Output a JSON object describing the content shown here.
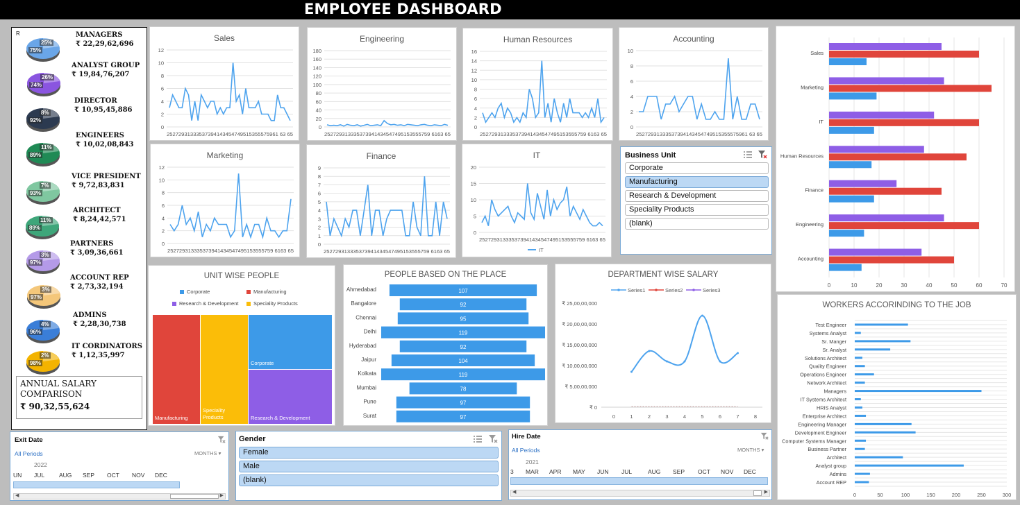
{
  "title": "EMPLOYEE DASHBOARD",
  "colors": {
    "blue": "#3d9ae8",
    "red": "#e0453b",
    "purple": "#8e5ee6",
    "yellow": "#fbbd08",
    "line": "#4da3ee"
  },
  "left_panel": {
    "marker": "R",
    "roles": [
      {
        "name": "MANAGERS",
        "value": "₹ 22,29,62,696",
        "pct_a": "25%",
        "pct_b": "75%",
        "color": "#6aa6e8"
      },
      {
        "name": "ANALYST GROUP",
        "value": "₹ 19,84,76,207",
        "pct_a": "26%",
        "pct_b": "74%",
        "color": "#8a55e0"
      },
      {
        "name": "DIRECTOR",
        "value": "₹ 10,95,45,886",
        "pct_a": "8%",
        "pct_b": "92%",
        "color": "#2c3a50"
      },
      {
        "name": "ENGINEERS",
        "value": "₹ 10,02,08,843",
        "pct_a": "11%",
        "pct_b": "89%",
        "color": "#1f8a55"
      },
      {
        "name": "VICE PRESIDENT",
        "value": "₹ 9,72,83,831",
        "pct_a": "7%",
        "pct_b": "93%",
        "color": "#7fc7a0"
      },
      {
        "name": "ARCHITECT",
        "value": "₹ 8,24,42,571",
        "pct_a": "11%",
        "pct_b": "89%",
        "color": "#3ea67a"
      },
      {
        "name": "PARTNERS",
        "value": "₹ 3,09,36,661",
        "pct_a": "3%",
        "pct_b": "97%",
        "color": "#b49ae8"
      },
      {
        "name": "ACCOUNT REP",
        "value": "₹ 2,73,32,194",
        "pct_a": "3%",
        "pct_b": "97%",
        "color": "#f4c77a"
      },
      {
        "name": "ADMINS",
        "value": "₹ 2,28,30,738",
        "pct_a": "4%",
        "pct_b": "96%",
        "color": "#3a7ed8"
      },
      {
        "name": "IT CORDINATORS",
        "value": "₹ 1,12,35,997",
        "pct_a": "2%",
        "pct_b": "98%",
        "color": "#f3b300"
      }
    ],
    "annual_title": "ANNUAL SALARY COMPARISON",
    "annual_value": "₹ 90,32,55,624"
  },
  "mini_charts": [
    {
      "title": "Sales",
      "yticks": [
        "12",
        "10",
        "8",
        "6",
        "4",
        "2",
        "0"
      ],
      "ymax": 12,
      "x_label": "25272931333537394143454749515355575961 63 65",
      "values": [
        3,
        5,
        4,
        3,
        3,
        6,
        5,
        1,
        4,
        1,
        5,
        4,
        3,
        4,
        4,
        2,
        3,
        2,
        3,
        3,
        10,
        4,
        5,
        2,
        6,
        3,
        3,
        3,
        4,
        2,
        2,
        2,
        1,
        1,
        5,
        3,
        3,
        2,
        1
      ],
      "legend": ""
    },
    {
      "title": "Engineering",
      "yticks": [
        "180",
        "160",
        "140",
        "120",
        "100",
        "80",
        "60",
        "40",
        "20",
        "0"
      ],
      "ymax": 180,
      "x_label": "252729313335373941434547495153555759 6163 65",
      "values": [
        5,
        3,
        4,
        3,
        5,
        2,
        6,
        4,
        3,
        5,
        2,
        4,
        6,
        3,
        4,
        5,
        3,
        15,
        8,
        5,
        6,
        4,
        5,
        3,
        6,
        5,
        4,
        3,
        5,
        6,
        4,
        3,
        5,
        4,
        3,
        6,
        4
      ],
      "legend": ""
    },
    {
      "title": "Human Resources",
      "yticks": [
        "16",
        "14",
        "12",
        "10",
        "8",
        "6",
        "4",
        "2",
        "0"
      ],
      "ymax": 16,
      "x_label": "252729313335373941434547495153555759 6163 65",
      "values": [
        3,
        1,
        2,
        3,
        2,
        4,
        5,
        2,
        4,
        3,
        1,
        2,
        1,
        3,
        2,
        8,
        6,
        2,
        3,
        14,
        2,
        5,
        1,
        6,
        3,
        1,
        5,
        2,
        6,
        3,
        3,
        3,
        2,
        3,
        2,
        4,
        2,
        6,
        1,
        2
      ],
      "legend": ""
    },
    {
      "title": "Accounting",
      "yticks": [
        "10",
        "8",
        "6",
        "4",
        "2",
        "0"
      ],
      "ymax": 10,
      "x_label": "25272931333537394143454749515355575961 63 65",
      "values": [
        2,
        2,
        4,
        4,
        4,
        1,
        3,
        3,
        4,
        2,
        3,
        4,
        4,
        1,
        3,
        1,
        1,
        2,
        1,
        1,
        9,
        1,
        4,
        1,
        1,
        3,
        3,
        1
      ],
      "legend": ""
    },
    {
      "title": "Marketing",
      "yticks": [
        "12",
        "10",
        "8",
        "6",
        "4",
        "2",
        "0"
      ],
      "ymax": 12,
      "x_label": "252729313335373941434547495153555759 6163 65",
      "values": [
        3,
        2,
        3,
        6,
        3,
        4,
        2,
        5,
        1,
        3,
        2,
        4,
        3,
        3,
        3,
        1,
        2,
        11,
        1,
        3,
        1,
        3,
        3,
        1,
        4,
        2,
        2,
        1,
        2,
        2,
        7
      ],
      "legend": ""
    },
    {
      "title": "Finance",
      "yticks": [
        "9",
        "8",
        "7",
        "6",
        "5",
        "4",
        "3",
        "2",
        "1",
        "0"
      ],
      "ymax": 9,
      "x_label": "252729313335373941434547495153555759 6163 65",
      "values": [
        5,
        1,
        3,
        2,
        1,
        3,
        2,
        4,
        4,
        1,
        4,
        7,
        1,
        4,
        4,
        1,
        3,
        4,
        4,
        4,
        4,
        1,
        1,
        5,
        2,
        1,
        8,
        1,
        1,
        5,
        1,
        5,
        3
      ],
      "legend": ""
    },
    {
      "title": "IT",
      "yticks": [
        "20",
        "15",
        "10",
        "5",
        "0"
      ],
      "ymax": 20,
      "x_label": "252729313335373941434547495153555759 6163 65",
      "values": [
        3,
        5,
        2,
        10,
        7,
        5,
        6,
        7,
        8,
        5,
        3,
        6,
        5,
        4,
        15,
        6,
        4,
        12,
        8,
        4,
        13,
        5,
        10,
        7,
        9,
        10,
        14,
        5,
        8,
        6,
        4,
        7,
        5,
        3,
        2,
        2,
        3,
        2
      ],
      "legend": "IT"
    }
  ],
  "business_unit": {
    "title": "Business Unit",
    "items": [
      "Corporate",
      "Manufacturing",
      "Research & Development",
      "Speciality Products",
      "(blank)"
    ],
    "selected": 1
  },
  "dept_bars": {
    "categories": [
      "Sales",
      "Marketing",
      "IT",
      "Human Resources",
      "Finance",
      "Engineering",
      "Accounting"
    ],
    "series": [
      {
        "values": [
          45,
          46,
          42,
          38,
          27,
          46,
          37
        ],
        "color": "#8e5ee6"
      },
      {
        "values": [
          60,
          65,
          60,
          55,
          45,
          60,
          50
        ],
        "color": "#e0453b"
      },
      {
        "values": [
          15,
          19,
          18,
          17,
          18,
          14,
          13
        ],
        "color": "#3d9ae8"
      }
    ],
    "xticks": [
      "0",
      "10",
      "20",
      "30",
      "40",
      "50",
      "60",
      "70"
    ],
    "xmax": 70
  },
  "unit_wise": {
    "title": "UNIT WISE PEOPLE",
    "legend": [
      "Corporate",
      "Manufacturing",
      "Research & Development",
      "Speciality Products"
    ],
    "labels": {
      "manufacturing": "Manufacturing",
      "speciality": "Speciality Products",
      "corporate": "Corporate",
      "rd": "Research & Development"
    }
  },
  "places": {
    "title": "PEOPLE BASED ON THE PLACE",
    "items": [
      {
        "city": "Ahmedabad",
        "value": 107
      },
      {
        "city": "Bangalore",
        "value": 92
      },
      {
        "city": "Chennai",
        "value": 95
      },
      {
        "city": "Delhi",
        "value": 119
      },
      {
        "city": "Hyderabad",
        "value": 92
      },
      {
        "city": "Jaipur",
        "value": 104
      },
      {
        "city": "Kolkata",
        "value": 119
      },
      {
        "city": "Mumbai",
        "value": 78
      },
      {
        "city": "Pune",
        "value": 97
      },
      {
        "city": "Surat",
        "value": 97
      }
    ]
  },
  "dept_salary": {
    "title": "DEPARTMENT WISE SALARY",
    "legend": [
      "Series1",
      "Series2",
      "Series3"
    ],
    "yticks": [
      "₹ 25,00,00,000",
      "₹ 20,00,00,000",
      "₹ 15,00,00,000",
      "₹ 10,00,00,000",
      "₹ 5,00,00,000",
      "₹ 0"
    ],
    "xticks": [
      "0",
      "1",
      "2",
      "3",
      "4",
      "5",
      "6",
      "7",
      "8"
    ],
    "series1": [
      {
        "x": 1,
        "y": 8.5
      },
      {
        "x": 2,
        "y": 13.5
      },
      {
        "x": 3,
        "y": 11
      },
      {
        "x": 4,
        "y": 11
      },
      {
        "x": 5,
        "y": 22
      },
      {
        "x": 6,
        "y": 11
      },
      {
        "x": 7,
        "y": 13
      }
    ]
  },
  "workers": {
    "title": "WORKERS ACCORINDING TO THE JOB",
    "items": [
      {
        "job": "Test Engineer",
        "value": 105
      },
      {
        "job": "Systems Analyst",
        "value": 12
      },
      {
        "job": "Sr. Manger",
        "value": 110
      },
      {
        "job": "Sr. Analyst",
        "value": 70
      },
      {
        "job": "Solutions Architect",
        "value": 15
      },
      {
        "job": "Quality Engineer",
        "value": 20
      },
      {
        "job": "Operations Engineer",
        "value": 38
      },
      {
        "job": "Network Architect",
        "value": 20
      },
      {
        "job": "Managers",
        "value": 250
      },
      {
        "job": "IT Systems Architect",
        "value": 12
      },
      {
        "job": "HRIS Analyst",
        "value": 15
      },
      {
        "job": "Enterprise Architect",
        "value": 22
      },
      {
        "job": "Engineering Manager",
        "value": 112
      },
      {
        "job": "Development Engineer",
        "value": 120
      },
      {
        "job": "Computer Systems Manager",
        "value": 22
      },
      {
        "job": "Business Partner",
        "value": 20
      },
      {
        "job": "Architect",
        "value": 95
      },
      {
        "job": "Analyst group",
        "value": 215
      },
      {
        "job": "Admins",
        "value": 30
      },
      {
        "job": "Account REP",
        "value": 28
      }
    ],
    "xticks": [
      "0",
      "50",
      "100",
      "150",
      "200",
      "250",
      "300"
    ],
    "xmax": 300
  },
  "exit_date": {
    "title": "Exit Date",
    "periods": "All Periods",
    "unit": "MONTHS",
    "year": "2022",
    "months": [
      "UN",
      "JUL",
      "AUG",
      "SEP",
      "OCT",
      "NOV",
      "DEC"
    ]
  },
  "gender": {
    "title": "Gender",
    "items": [
      "Female",
      "Male",
      "(blank)"
    ]
  },
  "hire_date": {
    "title": "Hire Date",
    "periods": "All Periods",
    "unit": "MONTHS",
    "year": "2021",
    "months": [
      "3",
      "MAR",
      "APR",
      "MAY",
      "JUN",
      "JUL",
      "AUG",
      "SEP",
      "OCT",
      "NOV",
      "DEC"
    ]
  }
}
